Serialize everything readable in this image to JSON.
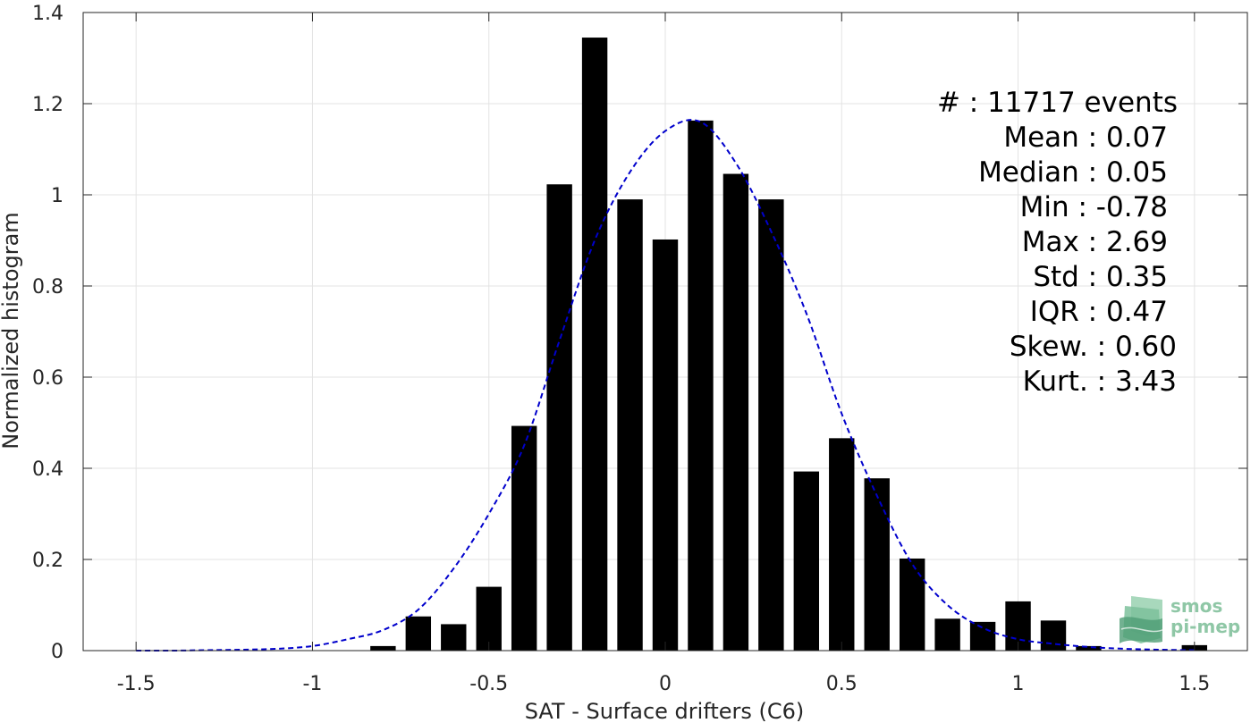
{
  "chart_data": {
    "type": "bar",
    "xlabel": "SAT - Surface drifters (C6)",
    "ylabel": "Normalized histogram",
    "xlim": [
      -1.65,
      1.65
    ],
    "ylim": [
      0,
      1.4
    ],
    "xticks": [
      -1.5,
      -1,
      -0.5,
      0,
      0.5,
      1,
      1.5
    ],
    "xtick_labels": [
      "-1.5",
      "-1",
      "-0.5",
      "0",
      "0.5",
      "1",
      "1.5"
    ],
    "yticks": [
      0,
      0.2,
      0.4,
      0.6,
      0.8,
      1,
      1.2,
      1.4
    ],
    "ytick_labels": [
      "0",
      "0.2",
      "0.4",
      "0.6",
      "0.8",
      "1",
      "1.2",
      "1.4"
    ],
    "grid": true,
    "bin_width": 0.1,
    "bar_width_fraction": 0.72,
    "bar_color": "#000000",
    "bars": {
      "centers": [
        -0.8,
        -0.7,
        -0.6,
        -0.5,
        -0.4,
        -0.3,
        -0.2,
        -0.1,
        0.0,
        0.1,
        0.2,
        0.3,
        0.4,
        0.5,
        0.6,
        0.7,
        0.8,
        0.9,
        1.0,
        1.1,
        1.2,
        1.5
      ],
      "values": [
        0.01,
        0.075,
        0.058,
        0.14,
        0.493,
        1.023,
        1.345,
        0.99,
        0.902,
        1.163,
        1.046,
        0.99,
        0.393,
        0.466,
        0.378,
        0.202,
        0.07,
        0.063,
        0.108,
        0.066,
        0.01,
        0.012
      ]
    },
    "fit_curve": {
      "style": "dashed",
      "color": "#0000cc",
      "x": [
        -1.5,
        -1.4,
        -1.3,
        -1.2,
        -1.1,
        -1.0,
        -0.9,
        -0.8,
        -0.7,
        -0.6,
        -0.5,
        -0.4,
        -0.3,
        -0.2,
        -0.1,
        0.0,
        0.1,
        0.2,
        0.3,
        0.4,
        0.5,
        0.6,
        0.7,
        0.8,
        0.9,
        1.0,
        1.1,
        1.2,
        1.3,
        1.4,
        1.5
      ],
      "y": [
        0.0,
        0.0,
        0.001,
        0.002,
        0.004,
        0.01,
        0.025,
        0.045,
        0.09,
        0.18,
        0.3,
        0.45,
        0.68,
        0.9,
        1.05,
        1.14,
        1.16,
        1.07,
        0.92,
        0.74,
        0.52,
        0.34,
        0.19,
        0.1,
        0.05,
        0.025,
        0.015,
        0.008,
        0.004,
        0.002,
        0.001
      ]
    }
  },
  "stats": [
    {
      "label": "#  : 11717 events"
    },
    {
      "label": "Mean : 0.07"
    },
    {
      "label": "Median : 0.05"
    },
    {
      "label": "Min : -0.78"
    },
    {
      "label": "Max : 2.69"
    },
    {
      "label": "Std : 0.35"
    },
    {
      "label": "IQR : 0.47"
    },
    {
      "label": "Skew. : 0.60"
    },
    {
      "label": "Kurt. : 3.43"
    }
  ],
  "logo": {
    "line1": "smos",
    "line2": "pi-mep",
    "color": "#6fb08c"
  }
}
